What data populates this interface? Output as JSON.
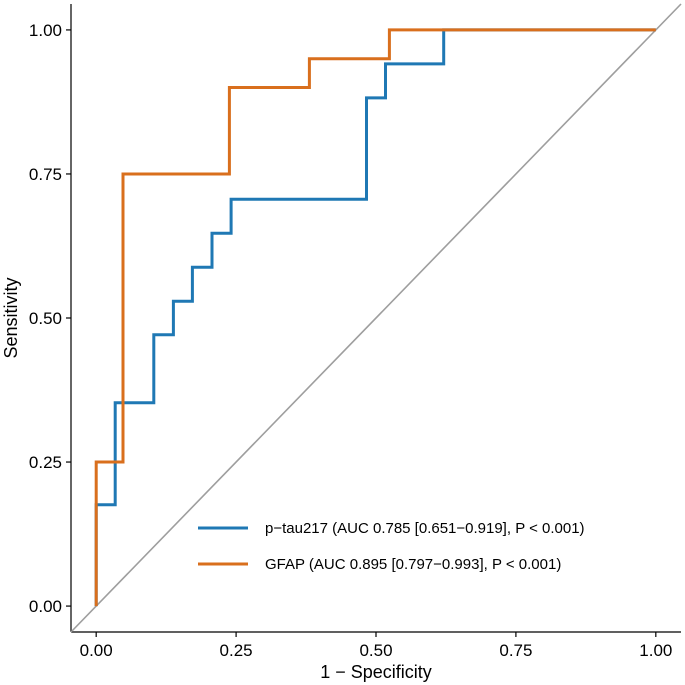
{
  "chart_data": {
    "type": "line",
    "xlabel": "1 − Specificity",
    "ylabel": "Sensitivity",
    "xlim": [
      -0.045,
      1.045
    ],
    "ylim": [
      -0.045,
      1.045
    ],
    "xticks": [
      0.0,
      0.25,
      0.5,
      0.75,
      1.0
    ],
    "xtick_labels": [
      "0.00",
      "0.25",
      "0.50",
      "0.75",
      "1.00"
    ],
    "yticks": [
      0.0,
      0.25,
      0.5,
      0.75,
      1.0
    ],
    "ytick_labels": [
      "0.00",
      "0.25",
      "0.50",
      "0.75",
      "1.00"
    ],
    "grid": false,
    "legend_position": "bottom-right",
    "reference_line": {
      "from": [
        0,
        0
      ],
      "to": [
        1,
        1
      ],
      "color": "#9e9e9e"
    },
    "series": [
      {
        "name": "p−tau217 (AUC 0.785 [0.651−0.919], P < 0.001)",
        "color": "#1f78b4",
        "x": [
          0,
          0,
          0.034,
          0.034,
          0.103,
          0.103,
          0.138,
          0.138,
          0.172,
          0.172,
          0.207,
          0.207,
          0.241,
          0.241,
          0.483,
          0.483,
          0.517,
          0.517,
          0.621,
          0.621,
          1.0
        ],
        "y": [
          0,
          0.176,
          0.176,
          0.353,
          0.353,
          0.471,
          0.471,
          0.529,
          0.529,
          0.588,
          0.588,
          0.647,
          0.647,
          0.706,
          0.706,
          0.882,
          0.882,
          0.941,
          0.941,
          1.0,
          1.0
        ]
      },
      {
        "name": "GFAP (AUC 0.895 [0.797−0.993], P < 0.001)",
        "color": "#d96f1d",
        "x": [
          0,
          0,
          0.048,
          0.048,
          0.238,
          0.238,
          0.381,
          0.381,
          0.524,
          0.524,
          1.0
        ],
        "y": [
          0,
          0.25,
          0.25,
          0.75,
          0.75,
          0.9,
          0.9,
          0.95,
          0.95,
          1.0,
          1.0
        ]
      }
    ]
  }
}
